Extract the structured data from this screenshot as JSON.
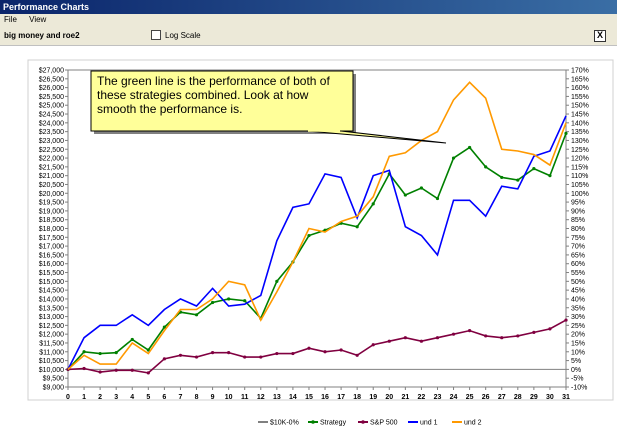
{
  "window": {
    "title": "Performance Charts"
  },
  "menu": {
    "file": "File",
    "view": "View"
  },
  "toolbar": {
    "chart_name": "big money and roe2",
    "log_scale_label": "Log Scale",
    "log_scale_checked": false,
    "close_label": "X"
  },
  "callout": {
    "text": "The green line is the performance of both of these strategies combined.  Look at how smooth the performance is."
  },
  "chart_data": {
    "type": "line",
    "x": [
      0,
      1,
      2,
      3,
      4,
      5,
      6,
      7,
      8,
      9,
      10,
      11,
      12,
      13,
      14,
      15,
      16,
      17,
      18,
      19,
      20,
      21,
      22,
      23,
      24,
      25,
      26,
      27,
      28,
      29,
      30,
      31
    ],
    "ylim": [
      9000,
      27000
    ],
    "y_ticks": [
      "$9,000",
      "$9,500",
      "$10,000",
      "$10,500",
      "$11,000",
      "$11,500",
      "$12,000",
      "$12,500",
      "$13,000",
      "$13,500",
      "$14,000",
      "$14,500",
      "$15,000",
      "$15,500",
      "$16,000",
      "$16,500",
      "$17,000",
      "$17,500",
      "$18,000",
      "$18,500",
      "$19,000",
      "$19,500",
      "$20,000",
      "$20,500",
      "$21,000",
      "$21,500",
      "$22,000",
      "$22,500",
      "$23,000",
      "$23,500",
      "$24,000",
      "$24,500",
      "$25,000",
      "$25,500",
      "$26,000",
      "$26,500",
      "$27,000"
    ],
    "y2_ticks": [
      "-10%",
      "-5%",
      "0%",
      "5%",
      "10%",
      "15%",
      "20%",
      "25%",
      "30%",
      "35%",
      "40%",
      "45%",
      "50%",
      "55%",
      "60%",
      "65%",
      "70%",
      "75%",
      "80%",
      "85%",
      "90%",
      "95%",
      "100%",
      "105%",
      "110%",
      "115%",
      "120%",
      "125%",
      "130%",
      "135%",
      "140%",
      "145%",
      "150%",
      "155%",
      "160%",
      "165%",
      "170%"
    ],
    "series": [
      {
        "name": "$10K-0%",
        "color": "#808080",
        "values": [
          10000,
          10000,
          10000,
          10000,
          10000,
          10000,
          10000,
          10000,
          10000,
          10000,
          10000,
          10000,
          10000,
          10000,
          10000,
          10000,
          10000,
          10000,
          10000,
          10000,
          10000,
          10000,
          10000,
          10000,
          10000,
          10000,
          10000,
          10000,
          10000,
          10000,
          10000,
          10000
        ]
      },
      {
        "name": "Strategy",
        "color": "#008000",
        "values": [
          10000,
          11000,
          10900,
          10950,
          11700,
          11100,
          12400,
          13250,
          13100,
          13800,
          14000,
          13900,
          12900,
          15000,
          16100,
          17600,
          17900,
          18300,
          18100,
          19400,
          21100,
          19900,
          20300,
          19700,
          22000,
          22600,
          21500,
          20900,
          20750,
          21400,
          21000,
          23400
        ]
      },
      {
        "name": "S&P 500",
        "color": "#800040",
        "values": [
          10000,
          10050,
          9850,
          9950,
          9950,
          9800,
          10600,
          10800,
          10700,
          10950,
          10950,
          10700,
          10700,
          10900,
          10900,
          11200,
          11000,
          11100,
          10800,
          11400,
          11600,
          11800,
          11600,
          11800,
          12000,
          12200,
          11900,
          11800,
          11900,
          12100,
          12300,
          12800
        ]
      },
      {
        "name": "und 1",
        "color": "#0000ff",
        "values": [
          10000,
          11800,
          12500,
          12500,
          13100,
          12500,
          13400,
          14000,
          13600,
          14600,
          13600,
          13700,
          14200,
          17300,
          19200,
          19400,
          21100,
          20900,
          18600,
          21000,
          21300,
          18100,
          17600,
          16500,
          19600,
          19600,
          18700,
          20400,
          20250,
          22100,
          22400,
          24400
        ]
      },
      {
        "name": "und 2",
        "color": "#ff9900",
        "values": [
          10000,
          10800,
          10300,
          10300,
          11500,
          10900,
          12200,
          13400,
          13400,
          14000,
          15000,
          14800,
          12800,
          14400,
          16100,
          18000,
          17800,
          18400,
          18700,
          19800,
          22100,
          22300,
          23000,
          23500,
          25300,
          26300,
          25400,
          22500,
          22400,
          22200,
          21600,
          24000
        ]
      }
    ]
  }
}
